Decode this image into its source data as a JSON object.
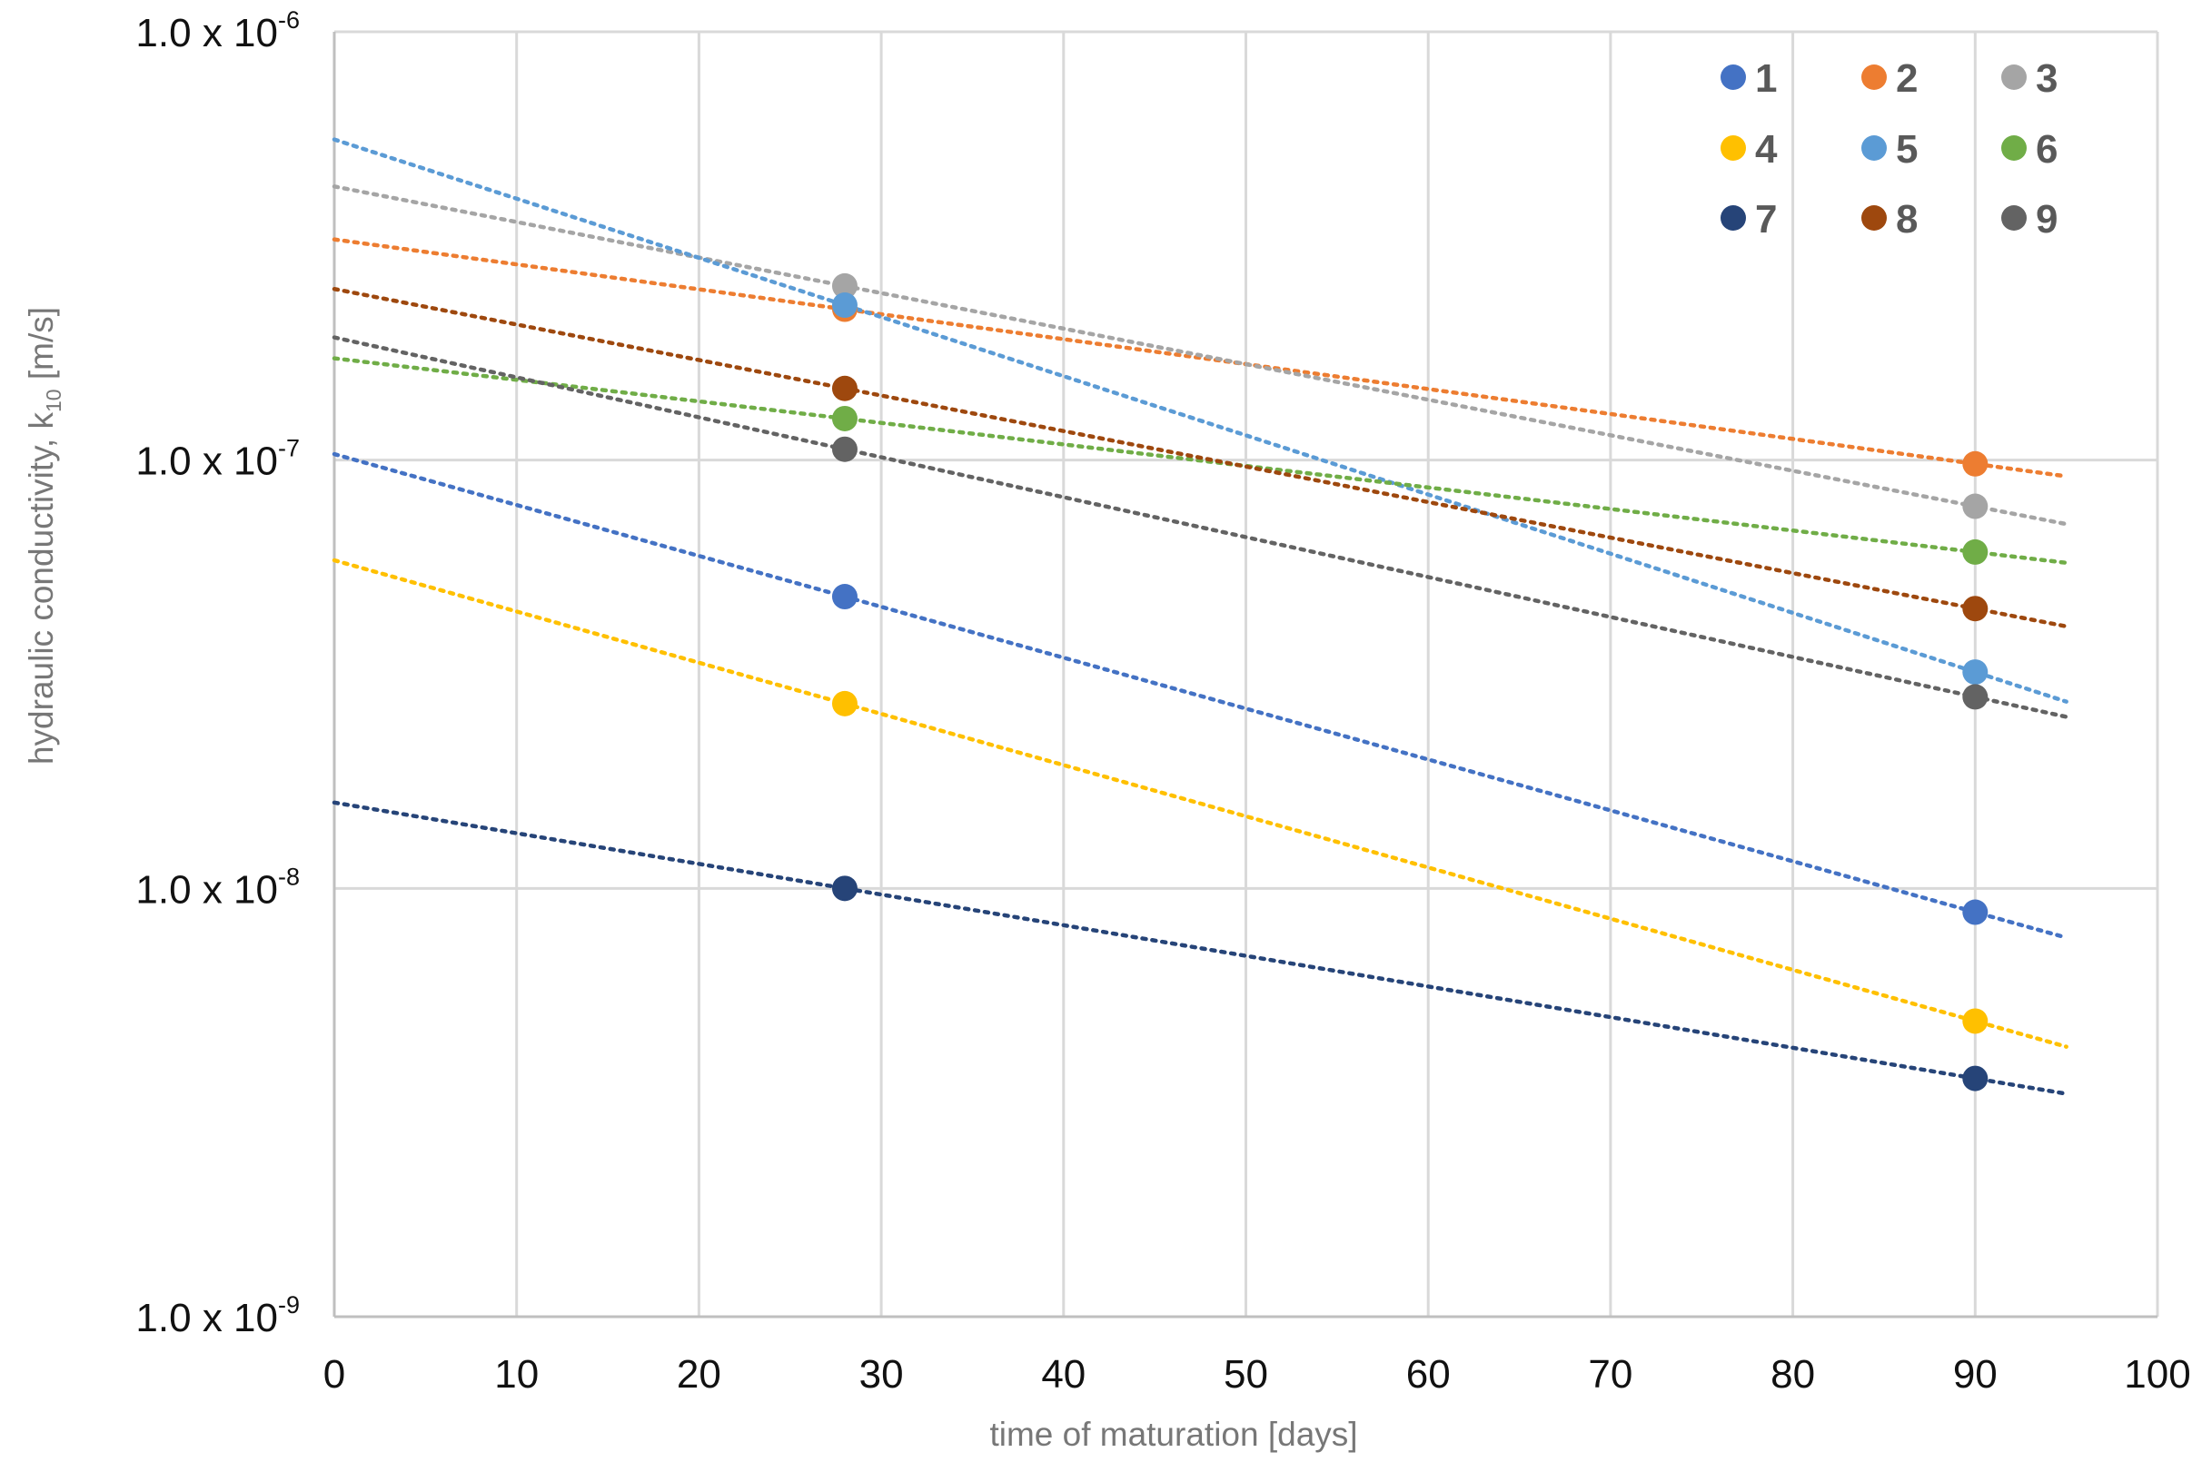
{
  "chart_data": {
    "type": "scatter",
    "title": "",
    "xlabel": "time of maturation [days]",
    "ylabel_main": "hydraulic conductivity, k",
    "ylabel_sub": "10",
    "ylabel_tail": " [m/s]",
    "xlim": [
      0,
      100
    ],
    "ylim": [
      1e-09,
      1e-06
    ],
    "yscale": "log",
    "grid": true,
    "legend_position": "top-right",
    "x_ticks": [
      "0",
      "10",
      "20",
      "30",
      "40",
      "50",
      "60",
      "70",
      "80",
      "90",
      "100"
    ],
    "y_ticks": [
      {
        "value": 1e-06,
        "base": "1.0 x 10",
        "exp": "-6"
      },
      {
        "value": 1e-07,
        "base": "1.0 x 10",
        "exp": "-7"
      },
      {
        "value": 1e-08,
        "base": "1.0 x 10",
        "exp": "-8"
      },
      {
        "value": 1e-09,
        "base": "1.0 x 10",
        "exp": "-9"
      }
    ],
    "trendline_x_range": [
      0,
      95
    ],
    "series": [
      {
        "name": "1",
        "color": "#4472C4",
        "points": [
          [
            28,
            4.8e-08
          ],
          [
            90,
            8.8e-09
          ]
        ],
        "trend_color": "#4472C4"
      },
      {
        "name": "2",
        "color": "#ED7D31",
        "points": [
          [
            28,
            2.25e-07
          ],
          [
            90,
            9.8e-08
          ]
        ],
        "trend_color": "#ED7D31"
      },
      {
        "name": "3",
        "color": "#A5A5A5",
        "points": [
          [
            28,
            2.55e-07
          ],
          [
            90,
            7.8e-08
          ]
        ],
        "trend_color": "#A5A5A5"
      },
      {
        "name": "4",
        "color": "#FFC000",
        "points": [
          [
            28,
            2.7e-08
          ],
          [
            90,
            4.9e-09
          ]
        ],
        "trend_color": "#FFC000"
      },
      {
        "name": "5",
        "color": "#5B9BD5",
        "points": [
          [
            28,
            2.3e-07
          ],
          [
            90,
            3.2e-08
          ]
        ],
        "trend_color": "#5B9BD5"
      },
      {
        "name": "6",
        "color": "#70AD47",
        "points": [
          [
            28,
            1.25e-07
          ],
          [
            90,
            6.1e-08
          ]
        ],
        "trend_color": "#70AD47"
      },
      {
        "name": "7",
        "color": "#264478",
        "points": [
          [
            28,
            1e-08
          ],
          [
            90,
            3.6e-09
          ]
        ],
        "trend_color": "#264478"
      },
      {
        "name": "8",
        "color": "#9E480E",
        "points": [
          [
            28,
            1.47e-07
          ],
          [
            90,
            4.5e-08
          ]
        ],
        "trend_color": "#9E480E"
      },
      {
        "name": "9",
        "color": "#636363",
        "points": [
          [
            28,
            1.06e-07
          ],
          [
            90,
            2.8e-08
          ]
        ],
        "trend_color": "#636363"
      }
    ]
  }
}
